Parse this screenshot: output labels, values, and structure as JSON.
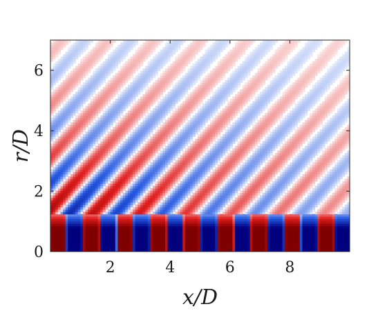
{
  "chart_data": {
    "type": "heatmap",
    "title": "",
    "xlabel": "x/D",
    "ylabel": "r/D",
    "xlim": [
      0,
      10
    ],
    "ylim": [
      0,
      7
    ],
    "xticks": [
      2,
      4,
      6,
      8
    ],
    "yticks": [
      0,
      2,
      4,
      6
    ],
    "xtick_labels": [
      "2",
      "4",
      "6",
      "8"
    ],
    "ytick_labels": [
      "0",
      "2",
      "4",
      "6"
    ],
    "grid": false,
    "legend": "none",
    "colormap": {
      "negative": "#00007f",
      "zero": "#ffffff",
      "positive": "#7f0000"
    },
    "near_field": {
      "r_max": 1.25,
      "cell_period": 0.56,
      "first_cell_center": 0.25,
      "first_cell_sign": "positive"
    },
    "wave_field": {
      "wavelength": 1.15,
      "propagation_angle_deg": 42,
      "amplitude_at_jet": 0.85,
      "decay_rate": 0.3,
      "phase_offset": 0.6
    }
  }
}
